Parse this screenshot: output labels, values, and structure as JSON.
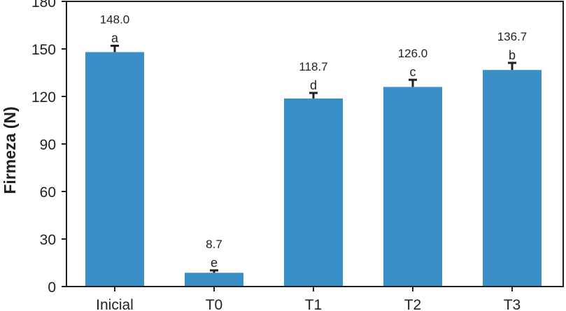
{
  "chart_data": {
    "type": "bar",
    "title": "",
    "xlabel": "",
    "ylabel": "Firmeza (N)",
    "ylim": [
      0,
      180
    ],
    "yticks": [
      "0",
      "30",
      "60",
      "90",
      "120",
      "150",
      "180"
    ],
    "categories": [
      "Inicial",
      "T0",
      "T1",
      "T2",
      "T3"
    ],
    "values": [
      148.0,
      8.7,
      118.7,
      126.0,
      136.7
    ],
    "value_labels": [
      "148.0",
      "8.7",
      "118.7",
      "126.0",
      "136.7"
    ],
    "errors": [
      4.0,
      1.5,
      3.5,
      4.5,
      4.5
    ],
    "letters": [
      "a",
      "e",
      "d",
      "c",
      "b"
    ],
    "grid": false,
    "legend": "none"
  },
  "colors": {
    "bar": "#3a8fc7",
    "axis": "#231f20",
    "text": "#231f20"
  }
}
